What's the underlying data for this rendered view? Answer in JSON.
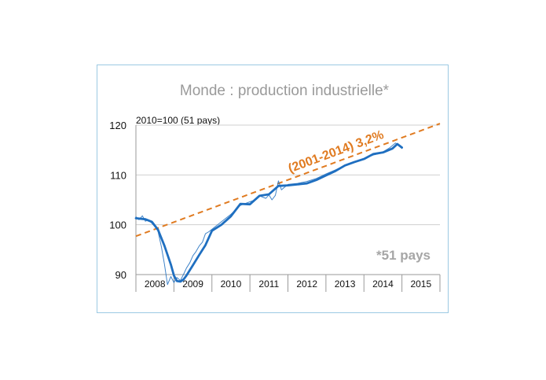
{
  "chart_data": {
    "type": "line",
    "title": "Monde : production industrielle*",
    "unit_label": "2010=100 (51 pays)",
    "note": "*51 pays",
    "trend_label": "(2001-2014) 3,2%",
    "ylim": [
      90,
      120
    ],
    "yticks": [
      90,
      100,
      110,
      120
    ],
    "xlim": [
      2008,
      2016
    ],
    "x_tick_labels": [
      "2008",
      "2009",
      "2010",
      "2011",
      "2012",
      "2013",
      "2014",
      "2015"
    ],
    "grid": "horizontal",
    "colors": {
      "series": "#1f6fc0",
      "trend": "#e07b21",
      "grid": "#cfcfcf",
      "frame": "#9cc9e3"
    },
    "series": [
      {
        "style": "smooth",
        "x": [
          2008.0,
          2008.25,
          2008.42,
          2008.58,
          2008.75,
          2008.92,
          2009.0,
          2009.08,
          2009.17,
          2009.25,
          2009.33,
          2009.5,
          2009.67,
          2009.83,
          2010.0,
          2010.25,
          2010.5,
          2010.75,
          2011.0,
          2011.25,
          2011.5,
          2011.75,
          2012.0,
          2012.25,
          2012.5,
          2012.75,
          2013.0,
          2013.25,
          2013.5,
          2013.75,
          2014.0,
          2014.25,
          2014.5,
          2014.75,
          2014.88,
          2015.0
        ],
        "values": [
          101.3,
          101.1,
          100.6,
          99.0,
          95.8,
          92.0,
          89.8,
          88.7,
          88.6,
          89.0,
          89.8,
          91.9,
          94.0,
          95.9,
          98.8,
          100.0,
          101.7,
          104.2,
          104.1,
          105.8,
          106.1,
          107.8,
          107.9,
          108.1,
          108.3,
          109.0,
          109.9,
          110.8,
          111.9,
          112.6,
          113.2,
          114.2,
          114.5,
          115.3,
          116.2,
          115.5
        ]
      },
      {
        "style": "raw",
        "x": [
          2008.0,
          2008.08,
          2008.17,
          2008.25,
          2008.33,
          2008.42,
          2008.5,
          2008.58,
          2008.67,
          2008.75,
          2008.83,
          2008.92,
          2009.0,
          2009.08,
          2009.17,
          2009.25,
          2009.33,
          2009.42,
          2009.5,
          2009.58,
          2009.67,
          2009.75,
          2009.83,
          2009.92,
          2010.0,
          2010.25,
          2010.5,
          2010.75,
          2011.0,
          2011.17,
          2011.25,
          2011.42,
          2011.5,
          2011.58,
          2011.67,
          2011.75,
          2011.83,
          2012.0,
          2012.25,
          2012.5,
          2012.75,
          2013.0,
          2013.25,
          2013.5,
          2013.75,
          2014.0,
          2014.25,
          2014.42,
          2014.5,
          2014.67,
          2014.83,
          2015.0
        ],
        "values": [
          101.6,
          101.0,
          101.8,
          100.7,
          101.0,
          100.3,
          99.6,
          98.7,
          95.6,
          92.1,
          88.0,
          89.6,
          88.4,
          89.4,
          88.8,
          90.0,
          91.3,
          92.4,
          93.8,
          94.6,
          95.8,
          96.5,
          98.2,
          98.6,
          99.1,
          100.6,
          102.1,
          103.9,
          104.6,
          105.1,
          105.8,
          105.3,
          106.0,
          105.0,
          105.9,
          108.8,
          107.0,
          108.1,
          108.3,
          108.7,
          109.3,
          110.2,
          111.0,
          111.9,
          112.6,
          113.3,
          114.0,
          114.3,
          114.6,
          115.4,
          116.4,
          115.3
        ]
      }
    ],
    "trend": {
      "x": [
        2008.0,
        2016.0
      ],
      "values": [
        97.7,
        120.3
      ]
    }
  }
}
